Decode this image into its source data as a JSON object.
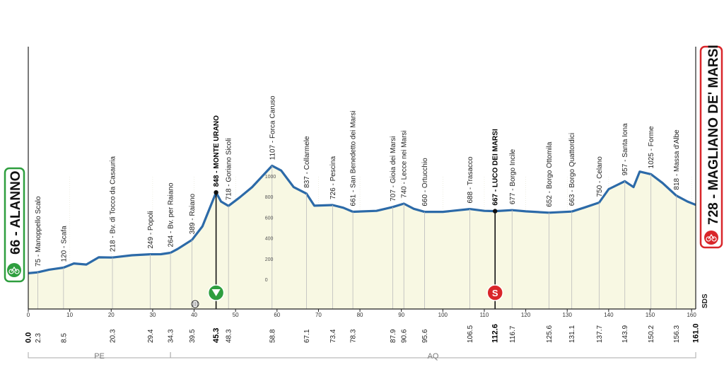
{
  "chart_data": {
    "type": "area",
    "title": "",
    "xlabel": "",
    "ylabel": "",
    "xlim": [
      0,
      161
    ],
    "ylim": [
      0,
      1200
    ],
    "x_ticks": [
      0,
      10,
      20,
      30,
      40,
      50,
      60,
      70,
      80,
      90,
      100,
      110,
      120,
      130,
      140,
      150,
      160
    ],
    "y_ticks": [
      0,
      200,
      400,
      600,
      800,
      1000
    ],
    "profile": {
      "x": [
        0,
        2.3,
        5,
        8.5,
        11,
        14,
        17,
        20.3,
        25,
        29.4,
        32,
        34.3,
        36,
        39.5,
        42,
        45.3,
        46.5,
        48.3,
        51,
        54,
        58.8,
        61,
        64,
        67.1,
        69,
        73.4,
        76,
        78.3,
        84,
        87.9,
        90.6,
        93,
        95.6,
        100,
        106.5,
        110,
        112.6,
        116.7,
        120,
        125.6,
        131.1,
        134,
        137.7,
        140,
        143.9,
        146,
        147.5,
        150.2,
        153,
        156.3,
        159,
        161
      ],
      "y": [
        66,
        75,
        100,
        120,
        160,
        150,
        220,
        218,
        240,
        249,
        250,
        264,
        300,
        389,
        520,
        848,
        760,
        718,
        800,
        900,
        1107,
        1060,
        900,
        837,
        720,
        726,
        700,
        661,
        670,
        707,
        740,
        690,
        660,
        660,
        688,
        670,
        667,
        677,
        665,
        652,
        663,
        700,
        750,
        880,
        957,
        900,
        1050,
        1025,
        940,
        818,
        760,
        728
      ]
    },
    "start": {
      "name": "ALANNO",
      "altitude": "66",
      "km": "0.0"
    },
    "finish": {
      "name": "MAGLIANO DE' MARSI",
      "altitude": "728",
      "km": "161.0"
    },
    "waypoints": [
      {
        "km": "2.3",
        "label": "75 - Manoppello Scalo",
        "x": 2.3,
        "y": 75
      },
      {
        "km": "8.5",
        "label": "120 - Scafa",
        "x": 8.5,
        "y": 120
      },
      {
        "km": "20.3",
        "label": "218 - Bv. di Tocco da Casauria",
        "x": 20.3,
        "y": 218
      },
      {
        "km": "29.4",
        "label": "249 - Popoli",
        "x": 29.4,
        "y": 249
      },
      {
        "km": "34.3",
        "label": "264 - Bv. per Raiano",
        "x": 34.3,
        "y": 264
      },
      {
        "km": "39.5",
        "label": "389 - Raiano",
        "x": 39.5,
        "y": 389
      },
      {
        "km": "45.3",
        "label": "848 - MONTE URANO",
        "x": 45.3,
        "y": 848,
        "bold": true
      },
      {
        "km": "48.3",
        "label": "718 - Goriano Sicoli",
        "x": 48.3,
        "y": 718
      },
      {
        "km": "58.8",
        "label": "1107 - Forca Caruso",
        "x": 58.8,
        "y": 1107
      },
      {
        "km": "67.1",
        "label": "837 - Collarmele",
        "x": 67.1,
        "y": 837
      },
      {
        "km": "73.4",
        "label": "726 - Pescina",
        "x": 73.4,
        "y": 726
      },
      {
        "km": "78.3",
        "label": "661 - San Benedetto dei Marsi",
        "x": 78.3,
        "y": 661
      },
      {
        "km": "87.9",
        "label": "707 - Gioia dei Marsi",
        "x": 87.9,
        "y": 707
      },
      {
        "km": "90.6",
        "label": "740 - Lecce nei Marsi",
        "x": 90.6,
        "y": 740
      },
      {
        "km": "95.6",
        "label": "660 - Ortucchio",
        "x": 95.6,
        "y": 660
      },
      {
        "km": "106.5",
        "label": "688 - Trasacco",
        "x": 106.5,
        "y": 688
      },
      {
        "km": "112.6",
        "label": "667 - LUCO DEI MARSI",
        "x": 112.6,
        "y": 667,
        "bold": true
      },
      {
        "km": "116.7",
        "label": "677 - Borgo Incile",
        "x": 116.7,
        "y": 677
      },
      {
        "km": "125.6",
        "label": "652 - Borgo Ottomila",
        "x": 125.6,
        "y": 652
      },
      {
        "km": "131.1",
        "label": "663 - Borgo Quattordici",
        "x": 131.1,
        "y": 663
      },
      {
        "km": "137.7",
        "label": "750 - Celano",
        "x": 137.7,
        "y": 750
      },
      {
        "km": "143.9",
        "label": "957 - Santa Iona",
        "x": 143.9,
        "y": 957
      },
      {
        "km": "150.2",
        "label": "1025 - Forme",
        "x": 150.2,
        "y": 1025
      },
      {
        "km": "156.3",
        "label": "818 - Massa d'Albe",
        "x": 156.3,
        "y": 818
      }
    ],
    "regions": [
      {
        "label": "PE",
        "from": 0,
        "to": 34.3
      },
      {
        "label": "AQ",
        "from": 34.3,
        "to": 161
      }
    ],
    "markers": {
      "kom": {
        "km": 45.3
      },
      "sprint": {
        "km": 112.6,
        "symbol": "S"
      }
    },
    "sds_label": "SDS",
    "colors": {
      "line": "#2c6aa8",
      "fill": "#f8f8e3",
      "start_green": "#2e9e3e",
      "finish_red": "#d9262a"
    }
  }
}
